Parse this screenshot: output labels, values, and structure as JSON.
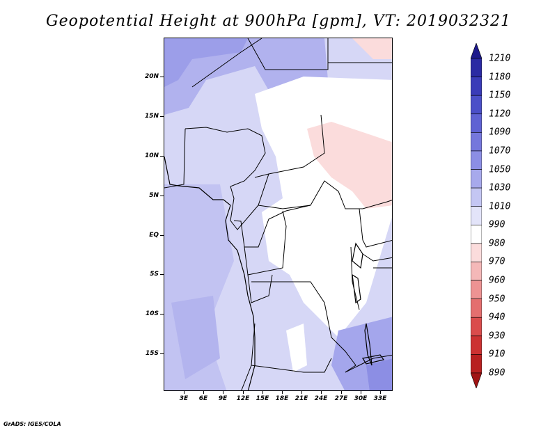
{
  "title": "Geopotential Height at 900hPa [gpm], VT: 2019032321",
  "credit": "GrADS: IGES/COLA",
  "map": {
    "region": "Central Africa",
    "lat_labels": [
      "20N",
      "15N",
      "10N",
      "5N",
      "EQ",
      "5S",
      "10S",
      "15S"
    ],
    "lon_labels": [
      "3E",
      "6E",
      "9E",
      "12E",
      "15E",
      "18E",
      "21E",
      "24E",
      "27E",
      "30E",
      "33E"
    ]
  },
  "colorbar": {
    "labels": [
      "1210",
      "1180",
      "1150",
      "1120",
      "1090",
      "1070",
      "1050",
      "1030",
      "1010",
      "990",
      "980",
      "970",
      "960",
      "950",
      "940",
      "930",
      "910",
      "890"
    ],
    "colors": [
      "#1e1a8c",
      "#2b2aa3",
      "#3a3bb8",
      "#4b4fc8",
      "#5f62d3",
      "#7577dc",
      "#8c8ee4",
      "#a7a9ec",
      "#c4c6f3",
      "#e3e4f9",
      "#ffffff",
      "#fbdcdc",
      "#f4b8b8",
      "#ed9393",
      "#e46f6f",
      "#da4c4c",
      "#cc3232",
      "#b82020",
      "#a01414"
    ]
  }
}
